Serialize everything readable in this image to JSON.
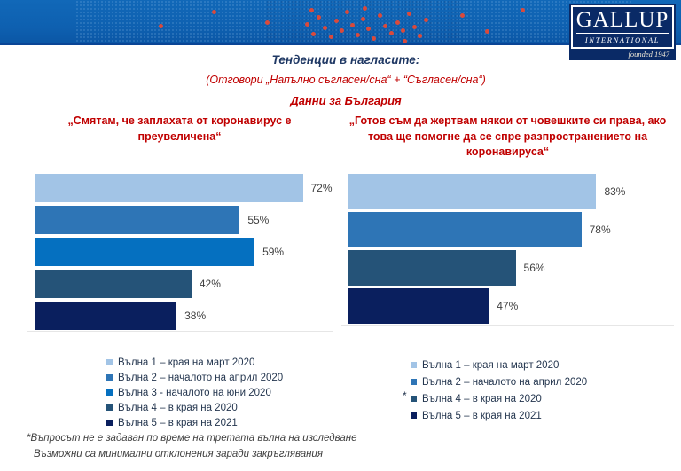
{
  "header": {
    "banner_color": "#0e60b0",
    "logo": {
      "line1": "GALLUP",
      "line2": "INTERNATIONAL",
      "founded": "founded 1947",
      "box_color": "#0a2a66"
    }
  },
  "titles": {
    "main": "Тенденции в нагласите:",
    "sub": "(Отговори „Напълно съгласен/сна“ + “Съгласен/сна“)",
    "country": "Данни за България",
    "main_color": "#1f3864",
    "accent_color": "#c00000"
  },
  "chart_data": [
    {
      "type": "bar",
      "orientation": "horizontal",
      "title": "„Смятам, че заплахата от коронавирус е преувеличена“",
      "unit": "%",
      "axis_max": 80,
      "grid": false,
      "legend_position": "bottom",
      "categories": [
        "Вълна 1 – края на март 2020",
        "Вълна 2 – началото на април 2020",
        "Вълна 3 - началото на юни 2020",
        "Вълна 4 – в края на 2020",
        "Вълна 5 – в края на 2021"
      ],
      "values": [
        72,
        55,
        59,
        42,
        38
      ],
      "bars": [
        {
          "label": "Вълна 1 – края на март 2020",
          "value": 72,
          "color": "#A2C4E6"
        },
        {
          "label": "Вълна 2 – началото на април 2020",
          "value": 55,
          "color": "#2E75B6"
        },
        {
          "label": "Вълна 3 - началото на юни 2020",
          "value": 59,
          "color": "#0570C0"
        },
        {
          "label": "Вълна 4 – в края на 2020",
          "value": 42,
          "color": "#255378"
        },
        {
          "label": "Вълна 5 – в края на 2021",
          "value": 38,
          "color": "#0A1F5E"
        }
      ]
    },
    {
      "type": "bar",
      "orientation": "horizontal",
      "title": "„Готов съм да жертвам някои от човешките си права, ако това ще помогне да се спре разпространението на коронавируса“",
      "unit": "%",
      "axis_max": 109,
      "grid": false,
      "legend_position": "bottom",
      "categories": [
        "Вълна 1 – края на март 2020",
        "Вълна 2 – началото на април 2020",
        "Вълна 4 – в края на 2020",
        "Вълна 5 – в края на 2021"
      ],
      "values": [
        83,
        78,
        56,
        47
      ],
      "bars": [
        {
          "label": "Вълна 1 – края на март 2020",
          "value": 83,
          "color": "#A2C4E6"
        },
        {
          "label": "Вълна 2 – началото на април 2020",
          "value": 78,
          "color": "#2E75B6"
        },
        {
          "label": "Вълна 4 – в края на 2020",
          "value": 56,
          "color": "#255378",
          "mark": "*"
        },
        {
          "label": "Вълна 5 – в края на 2021",
          "value": 47,
          "color": "#0A1F5E"
        }
      ]
    }
  ],
  "footnotes": {
    "line1": "*Въпросът не е задаван по време на третата вълна на изследване",
    "line2": "Възможни са минимални отклонения заради закръглявания"
  }
}
